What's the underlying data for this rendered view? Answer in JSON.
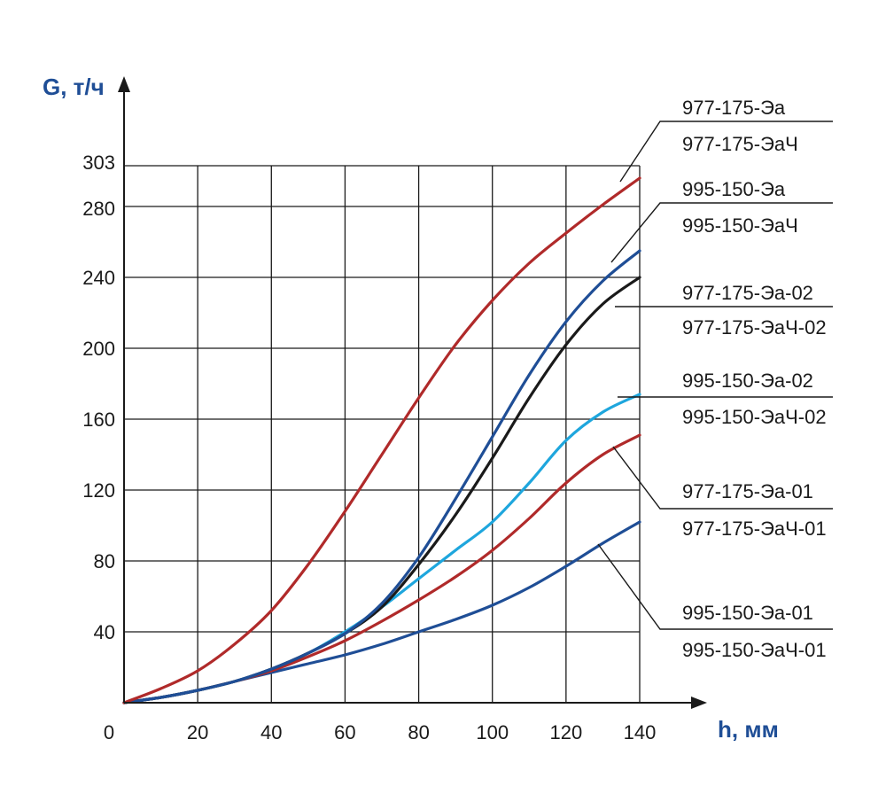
{
  "chart_data": {
    "type": "line",
    "xlabel": "h, мм",
    "ylabel": "G, т/ч",
    "xlim": [
      0,
      140
    ],
    "ylim": [
      0,
      303
    ],
    "x_ticks": [
      "0",
      "20",
      "40",
      "60",
      "80",
      "100",
      "120",
      "140"
    ],
    "y_ticks": [
      "40",
      "80",
      "120",
      "160",
      "200",
      "240",
      "280",
      "303"
    ],
    "grid": true,
    "colors": {
      "red": "#b02a2a",
      "blue": "#1f4e96",
      "black": "#1a1a1a",
      "cyan": "#1ea6dd",
      "axis_label": "#1f4e96"
    },
    "series": [
      {
        "name_top": "977-175-Эа",
        "name_bottom": "977-175-ЭаЧ",
        "color": "red",
        "x": [
          0,
          10,
          20,
          30,
          40,
          50,
          60,
          70,
          80,
          90,
          100,
          110,
          120,
          130,
          140
        ],
        "y": [
          0,
          8,
          18,
          33,
          52,
          78,
          108,
          140,
          172,
          202,
          227,
          248,
          265,
          281,
          296
        ]
      },
      {
        "name_top": "995-150-Эа",
        "name_bottom": "995-150-ЭаЧ",
        "color": "blue",
        "x": [
          0,
          10,
          20,
          30,
          40,
          50,
          60,
          70,
          80,
          90,
          100,
          110,
          120,
          130,
          140
        ],
        "y": [
          0,
          3,
          7,
          12,
          19,
          28,
          39,
          56,
          82,
          115,
          150,
          185,
          215,
          238,
          255
        ]
      },
      {
        "name_top": "977-175-Эа-02",
        "name_bottom": "977-175-ЭаЧ-02",
        "color": "black",
        "x": [
          0,
          10,
          20,
          30,
          40,
          50,
          60,
          70,
          80,
          90,
          100,
          110,
          120,
          130,
          140
        ],
        "y": [
          0,
          3,
          7,
          12,
          19,
          28,
          39,
          54,
          78,
          106,
          138,
          172,
          202,
          225,
          240
        ]
      },
      {
        "name_top": "995-150-Эа-02",
        "name_bottom": "995-150-ЭаЧ-02",
        "color": "cyan",
        "x": [
          0,
          10,
          20,
          30,
          40,
          50,
          60,
          70,
          80,
          90,
          100,
          110,
          120,
          130,
          140
        ],
        "y": [
          0,
          3,
          7,
          12,
          19,
          28,
          40,
          54,
          70,
          86,
          102,
          124,
          148,
          164,
          174
        ]
      },
      {
        "name_top": "977-175-Эа-01",
        "name_bottom": "977-175-ЭаЧ-01",
        "color": "red",
        "x": [
          0,
          10,
          20,
          30,
          40,
          50,
          60,
          70,
          80,
          90,
          100,
          110,
          120,
          130,
          140
        ],
        "y": [
          0,
          3,
          7,
          12,
          18,
          26,
          35,
          46,
          58,
          71,
          86,
          104,
          124,
          140,
          151
        ]
      },
      {
        "name_top": "995-150-Эа-01",
        "name_bottom": "995-150-ЭаЧ-01",
        "color": "blue",
        "x": [
          0,
          10,
          20,
          30,
          40,
          50,
          60,
          70,
          80,
          90,
          100,
          110,
          120,
          130,
          140
        ],
        "y": [
          0,
          3,
          7,
          12,
          17,
          22,
          27,
          33,
          40,
          47,
          55,
          65,
          77,
          90,
          102
        ]
      }
    ]
  }
}
